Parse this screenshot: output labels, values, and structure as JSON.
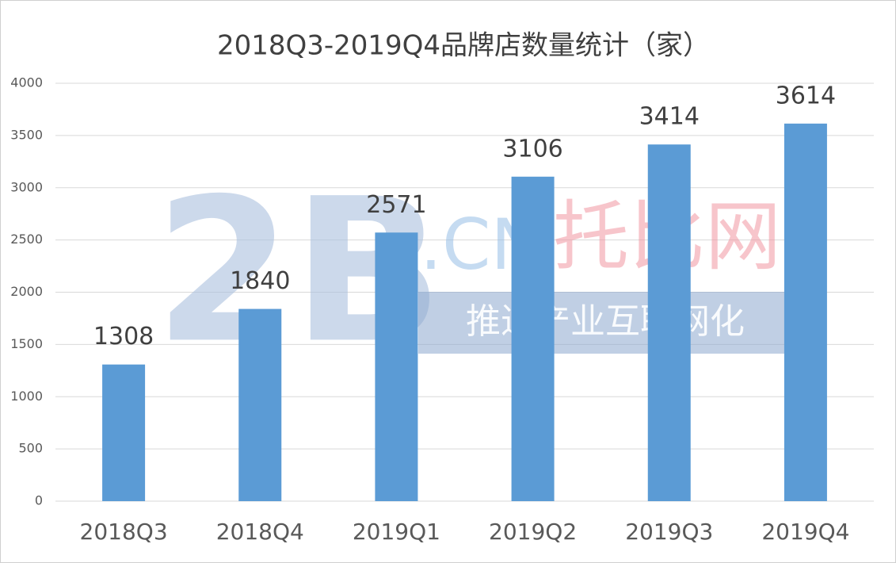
{
  "chart_data": {
    "type": "bar",
    "title": "2018Q3-2019Q4品牌店数量统计（家）",
    "categories": [
      "2018Q3",
      "2018Q4",
      "2019Q1",
      "2019Q2",
      "2019Q3",
      "2019Q4"
    ],
    "values": [
      1308,
      1840,
      2571,
      3106,
      3414,
      3614
    ],
    "color": "#5b9bd5",
    "ylim": [
      0,
      4000
    ],
    "yticks": [
      0,
      500,
      1000,
      1500,
      2000,
      2500,
      3000,
      3500,
      4000
    ],
    "grid": true,
    "watermark": {
      "logo": "2B",
      "domain": ".CN",
      "brand": "托比网",
      "slogan": "推进产业互联网化"
    }
  }
}
